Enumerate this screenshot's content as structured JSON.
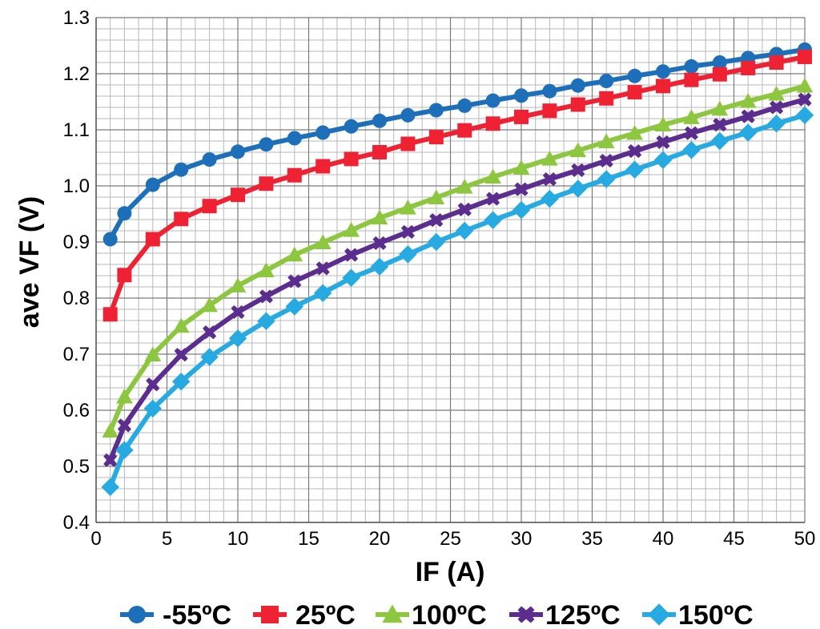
{
  "chart_data": {
    "type": "line",
    "xlabel": "IF (A)",
    "ylabel": "ave VF (V)",
    "xlim": [
      0,
      50
    ],
    "ylim": [
      0.4,
      1.3
    ],
    "x_ticks": [
      0,
      5,
      10,
      15,
      20,
      25,
      30,
      35,
      40,
      45,
      50
    ],
    "y_ticks": [
      0.4,
      0.5,
      0.6,
      0.7,
      0.8,
      0.9,
      1.0,
      1.1,
      1.2,
      1.3
    ],
    "y_tick_labels": [
      "0.4",
      "0.5",
      "0.6",
      "0.7",
      "0.8",
      "0.9",
      "1.0",
      "1.1",
      "1.2",
      "1.3"
    ],
    "x_minor_step": 1,
    "y_minor_step": 0.02,
    "grid": true,
    "legend_position": "bottom",
    "x": [
      1,
      2,
      4,
      6,
      8,
      10,
      12,
      14,
      16,
      18,
      20,
      22,
      24,
      26,
      28,
      30,
      32,
      34,
      36,
      38,
      40,
      42,
      44,
      46,
      48,
      50
    ],
    "series": [
      {
        "name": "-55ºC",
        "color": "#1e6fba",
        "marker": "circle",
        "values": [
          0.905,
          0.951,
          1.002,
          1.029,
          1.047,
          1.061,
          1.074,
          1.085,
          1.095,
          1.106,
          1.116,
          1.126,
          1.135,
          1.143,
          1.152,
          1.161,
          1.169,
          1.179,
          1.187,
          1.196,
          1.204,
          1.213,
          1.22,
          1.228,
          1.235,
          1.243
        ]
      },
      {
        "name": "25ºC",
        "color": "#ee2233",
        "marker": "square",
        "values": [
          0.771,
          0.841,
          0.905,
          0.941,
          0.964,
          0.984,
          1.004,
          1.019,
          1.035,
          1.048,
          1.06,
          1.075,
          1.087,
          1.099,
          1.111,
          1.123,
          1.134,
          1.145,
          1.156,
          1.167,
          1.178,
          1.189,
          1.199,
          1.21,
          1.22,
          1.23
        ]
      },
      {
        "name": "100ºC",
        "color": "#8dc63f",
        "marker": "triangle",
        "values": [
          0.563,
          0.624,
          0.699,
          0.75,
          0.787,
          0.822,
          0.849,
          0.877,
          0.899,
          0.921,
          0.943,
          0.961,
          0.979,
          0.998,
          1.016,
          1.032,
          1.048,
          1.063,
          1.079,
          1.094,
          1.109,
          1.122,
          1.137,
          1.151,
          1.164,
          1.178
        ]
      },
      {
        "name": "125ºC",
        "color": "#5b2d8e",
        "marker": "x",
        "values": [
          0.511,
          0.573,
          0.646,
          0.699,
          0.739,
          0.775,
          0.803,
          0.83,
          0.853,
          0.877,
          0.898,
          0.918,
          0.939,
          0.958,
          0.977,
          0.994,
          1.012,
          1.028,
          1.045,
          1.062,
          1.078,
          1.094,
          1.109,
          1.124,
          1.14,
          1.154
        ]
      },
      {
        "name": "150ºC",
        "color": "#27aae1",
        "marker": "diamond",
        "values": [
          0.463,
          0.529,
          0.603,
          0.651,
          0.695,
          0.728,
          0.759,
          0.785,
          0.809,
          0.836,
          0.856,
          0.878,
          0.9,
          0.92,
          0.939,
          0.957,
          0.977,
          0.995,
          1.012,
          1.029,
          1.046,
          1.064,
          1.08,
          1.095,
          1.111,
          1.126
        ]
      }
    ]
  }
}
